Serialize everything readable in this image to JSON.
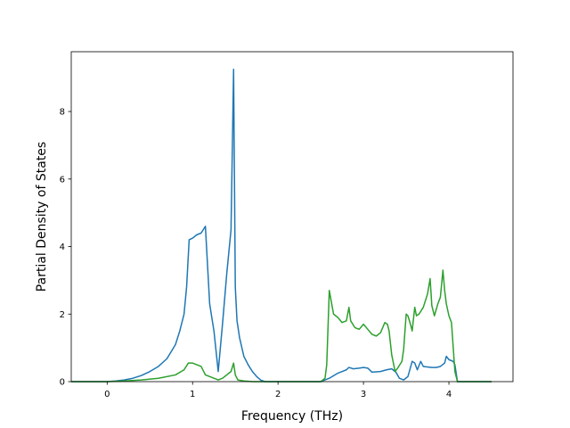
{
  "chart_data": {
    "type": "line",
    "title": "",
    "xlabel": "Frequency (THz)",
    "ylabel": "Partial Density of States",
    "xlim": [
      -0.42,
      4.75
    ],
    "ylim": [
      0,
      9.77
    ],
    "xticks": [
      0,
      1,
      2,
      3,
      4
    ],
    "xtick_labels": [
      "0",
      "1",
      "2",
      "3",
      "4"
    ],
    "yticks": [
      0,
      2,
      4,
      6,
      8
    ],
    "ytick_labels": [
      "0",
      "2",
      "4",
      "6",
      "8"
    ],
    "grid": false,
    "legend": "none",
    "series": [
      {
        "color": "#1f77b4",
        "x": [
          -0.42,
          0.0,
          0.1,
          0.2,
          0.3,
          0.4,
          0.5,
          0.6,
          0.7,
          0.8,
          0.85,
          0.9,
          0.93,
          0.96,
          1.0,
          1.05,
          1.1,
          1.15,
          1.2,
          1.25,
          1.3,
          1.35,
          1.4,
          1.45,
          1.48,
          1.5,
          1.52,
          1.55,
          1.6,
          1.65,
          1.7,
          1.75,
          1.8,
          1.85,
          1.9,
          2.0,
          2.3,
          2.5,
          2.55,
          2.6,
          2.7,
          2.8,
          2.83,
          2.88,
          2.95,
          3.0,
          3.05,
          3.1,
          3.2,
          3.27,
          3.33,
          3.38,
          3.42,
          3.47,
          3.52,
          3.57,
          3.6,
          3.63,
          3.67,
          3.7,
          3.8,
          3.85,
          3.9,
          3.95,
          3.97,
          4.0,
          4.05,
          4.07,
          4.1,
          4.2,
          4.5
        ],
        "values": [
          0.0,
          0.0,
          0.02,
          0.05,
          0.1,
          0.18,
          0.3,
          0.45,
          0.68,
          1.1,
          1.5,
          2.0,
          2.8,
          4.2,
          4.25,
          4.35,
          4.4,
          4.6,
          2.3,
          1.5,
          0.3,
          1.7,
          3.2,
          4.5,
          9.25,
          2.8,
          1.8,
          1.3,
          0.75,
          0.5,
          0.3,
          0.15,
          0.04,
          0.0,
          0.0,
          0.0,
          0.0,
          0.0,
          0.05,
          0.1,
          0.25,
          0.35,
          0.42,
          0.38,
          0.4,
          0.42,
          0.4,
          0.28,
          0.3,
          0.35,
          0.38,
          0.28,
          0.1,
          0.05,
          0.15,
          0.6,
          0.55,
          0.35,
          0.6,
          0.45,
          0.42,
          0.42,
          0.45,
          0.55,
          0.75,
          0.65,
          0.6,
          0.5,
          0.0,
          0.0,
          0.0
        ]
      },
      {
        "color": "#2ca02c",
        "x": [
          -0.42,
          0.0,
          0.2,
          0.4,
          0.6,
          0.8,
          0.9,
          0.95,
          1.0,
          1.05,
          1.1,
          1.15,
          1.2,
          1.3,
          1.35,
          1.4,
          1.45,
          1.48,
          1.5,
          1.53,
          1.6,
          1.7,
          1.8,
          1.9,
          2.0,
          2.3,
          2.5,
          2.55,
          2.57,
          2.6,
          2.65,
          2.7,
          2.75,
          2.8,
          2.83,
          2.85,
          2.9,
          2.95,
          3.0,
          3.05,
          3.1,
          3.15,
          3.2,
          3.25,
          3.28,
          3.3,
          3.33,
          3.37,
          3.4,
          3.45,
          3.47,
          3.5,
          3.52,
          3.55,
          3.57,
          3.6,
          3.62,
          3.65,
          3.7,
          3.75,
          3.78,
          3.8,
          3.83,
          3.87,
          3.9,
          3.93,
          3.95,
          3.97,
          4.0,
          4.03,
          4.07,
          4.1,
          4.15,
          4.3,
          4.5
        ],
        "values": [
          0.0,
          0.0,
          0.02,
          0.05,
          0.1,
          0.2,
          0.35,
          0.55,
          0.55,
          0.5,
          0.45,
          0.2,
          0.15,
          0.05,
          0.1,
          0.2,
          0.3,
          0.55,
          0.2,
          0.05,
          0.02,
          0.0,
          0.0,
          0.0,
          0.0,
          0.0,
          0.0,
          0.1,
          0.5,
          2.7,
          2.0,
          1.9,
          1.75,
          1.8,
          2.2,
          1.8,
          1.6,
          1.55,
          1.7,
          1.55,
          1.4,
          1.35,
          1.45,
          1.75,
          1.7,
          1.5,
          0.8,
          0.3,
          0.4,
          0.6,
          0.95,
          2.0,
          1.95,
          1.7,
          1.5,
          2.2,
          1.95,
          2.0,
          2.2,
          2.6,
          3.05,
          2.25,
          1.95,
          2.3,
          2.5,
          3.3,
          2.7,
          2.3,
          1.95,
          1.75,
          0.3,
          0.0,
          0.0,
          0.0,
          0.0
        ]
      }
    ]
  }
}
